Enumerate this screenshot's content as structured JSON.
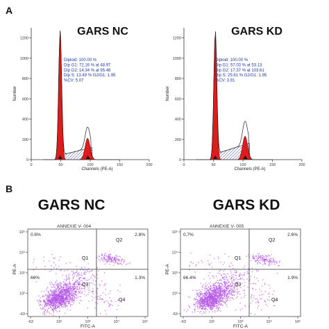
{
  "panels": {
    "a_label": "A",
    "b_label": "B"
  },
  "colors": {
    "peak_fill": "#e11a1a",
    "s_phase_hatch": "#1e2a78",
    "stats_text": "#1e37a8",
    "scatter_dot": "#b455e6",
    "scatter_dense": "#8a2be2",
    "axis": "#333333"
  },
  "chart_data": [
    {
      "type": "area",
      "title": "GARS NC",
      "xlabel": "Channels (PE-A)",
      "ylabel": "Number",
      "xlim": [
        0,
        200
      ],
      "ylim": [
        0,
        1300
      ],
      "x_ticks": [
        "0",
        "50",
        "100",
        "150",
        "200"
      ],
      "y_ticks": [
        "0",
        "200",
        "400",
        "600",
        "800",
        "1000",
        "1200"
      ],
      "grid": false,
      "g1_peak": {
        "x": 48.97,
        "y": 1230
      },
      "g2_peak": {
        "x": 95.48,
        "y": 210
      },
      "s_phase_level": 120,
      "markers_x": [
        49,
        96
      ],
      "stats": [
        "Diploid: 100.00 %",
        "Dip G1: 72.16 % at 48.97",
        "Dip G2: 14.34 % at 95.48",
        "Dip S: 13.49 %   G2/G1: 1.95",
        "%CV: 5.07"
      ]
    },
    {
      "type": "area",
      "title": "GARS KD",
      "xlabel": "Channels (PE-A)",
      "ylabel": "Number",
      "xlim": [
        0,
        200
      ],
      "ylim": [
        0,
        1300
      ],
      "x_ticks": [
        "0",
        "50",
        "100",
        "150",
        "200"
      ],
      "y_ticks": [
        "0",
        "200",
        "400",
        "600",
        "800",
        "1000",
        "1200"
      ],
      "grid": false,
      "g1_peak": {
        "x": 53.13,
        "y": 1220
      },
      "g2_peak": {
        "x": 103.61,
        "y": 230
      },
      "s_phase_level": 160,
      "markers_x": [
        53,
        104
      ],
      "stats": [
        "Diploid: 100.00 %",
        "Dip G1: 57.03 % at 53.13",
        "Dip G2: 17.37 % at 103.61",
        "Dip S: 25.61 %   G2/G1: 1.95",
        "%CV: 3.91"
      ]
    },
    {
      "type": "scatter",
      "title": "GARS NC",
      "subtitle": "ANNEXIE V- 004",
      "xlabel": "FITC-A",
      "ylabel": "PE-A",
      "x_ticks": [
        "-63",
        "10²",
        "10³",
        "10⁴",
        "10⁵"
      ],
      "y_ticks": [
        "-63",
        "10²",
        "10³",
        "10⁴",
        "10⁵"
      ],
      "log_scale": true,
      "quadrants": {
        "Q1": 0.6,
        "Q2": 2.8,
        "Q3": 66,
        "Q4": 1.3
      },
      "quadrant_labels": {
        "UL": "0.6%",
        "UR": "2.8%",
        "LL": "66%",
        "LR": "1.3%"
      },
      "quadrant_names": [
        "Q1",
        "Q2",
        "Q3",
        "Q4"
      ]
    },
    {
      "type": "scatter",
      "title": "GARS KD",
      "subtitle": "ANNEXIE V- 005",
      "xlabel": "FITC-A",
      "ylabel": "PE-A",
      "x_ticks": [
        "-63",
        "10²",
        "10³",
        "10⁴",
        "10⁵"
      ],
      "y_ticks": [
        "-63",
        "10²",
        "10³",
        "10⁴",
        "10⁵"
      ],
      "log_scale": true,
      "quadrants": {
        "Q1": 0.7,
        "Q2": 2.6,
        "Q3": 66.4,
        "Q4": 1.9
      },
      "quadrant_labels": {
        "UL": "0.7%",
        "UR": "2.6%",
        "LL": "66.4%",
        "LR": "1.9%"
      },
      "quadrant_names": [
        "Q1",
        "Q2",
        "Q3",
        "Q4"
      ]
    }
  ]
}
